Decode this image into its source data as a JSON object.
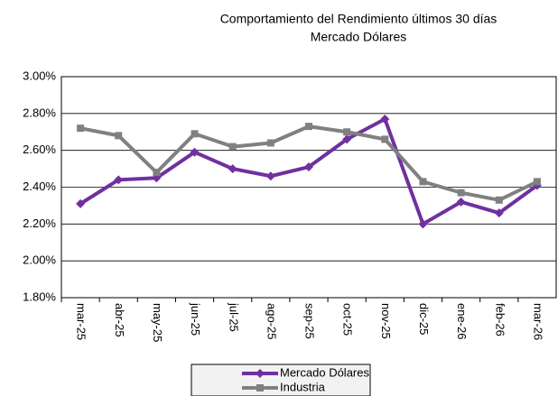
{
  "chart_data": {
    "type": "line",
    "title": "Comportamiento del Rendimiento últimos 30 días",
    "subtitle": "Mercado Dólares",
    "categories": [
      "mar-25",
      "abr-25",
      "may-25",
      "jun-25",
      "jul-25",
      "ago-25",
      "sep-25",
      "oct-25",
      "nov-25",
      "dic-25",
      "ene-26",
      "feb-26",
      "mar-26"
    ],
    "series": [
      {
        "name": "Mercado Dólares",
        "color": "#7030a0",
        "marker": "diamond",
        "values": [
          2.31,
          2.44,
          2.45,
          2.59,
          2.5,
          2.46,
          2.51,
          2.66,
          2.77,
          2.2,
          2.32,
          2.26,
          2.41
        ]
      },
      {
        "name": "Industria",
        "color": "#808080",
        "marker": "square",
        "values": [
          2.72,
          2.68,
          2.48,
          2.69,
          2.62,
          2.64,
          2.73,
          2.7,
          2.66,
          2.43,
          2.37,
          2.33,
          2.43
        ]
      }
    ],
    "ylim": [
      1.8,
      3.0
    ],
    "yticks": [
      {
        "value": 1.8,
        "label": "1.80%"
      },
      {
        "value": 2.0,
        "label": "2.00%"
      },
      {
        "value": 2.2,
        "label": "2.20%"
      },
      {
        "value": 2.4,
        "label": "2.40%"
      },
      {
        "value": 2.6,
        "label": "2.60%"
      },
      {
        "value": 2.8,
        "label": "2.80%"
      },
      {
        "value": 3.0,
        "label": "3.00%"
      }
    ],
    "grid": true,
    "legend": "bottom"
  }
}
